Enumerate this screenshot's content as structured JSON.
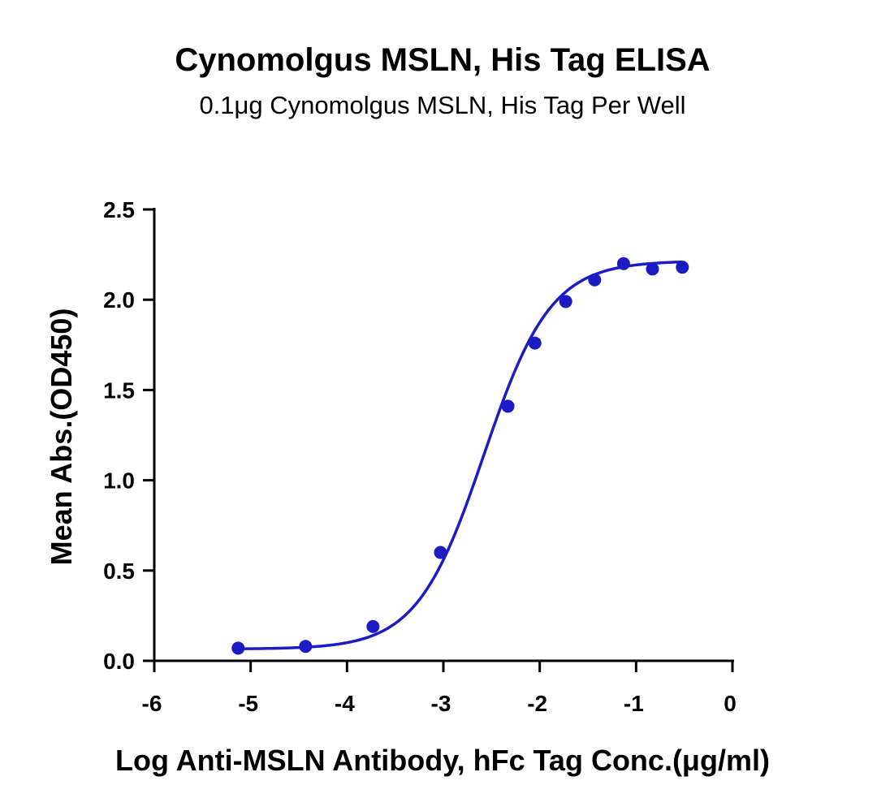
{
  "chart_data": {
    "type": "scatter",
    "title": "Cynomolgus MSLN, His Tag ELISA",
    "subtitle": "0.1μg Cynomolgus MSLN, His Tag Per Well",
    "xlabel": "Log Anti-MSLN Antibody, hFc Tag Conc.(μg/ml)",
    "ylabel": "Mean Abs.(OD450)",
    "xlim": [
      -6,
      0
    ],
    "ylim": [
      0,
      2.5
    ],
    "x_ticks": [
      "-6",
      "-5",
      "-4",
      "-3",
      "-2",
      "-1",
      "0"
    ],
    "y_ticks": [
      "0.0",
      "0.5",
      "1.0",
      "1.5",
      "2.0",
      "2.5"
    ],
    "grid": false,
    "legend": "none",
    "series": [
      {
        "color": "#1c1cc4",
        "x": [
          -5.13,
          -4.43,
          -3.73,
          -3.03,
          -2.33,
          -2.05,
          -1.73,
          -1.43,
          -1.13,
          -0.83,
          -0.52
        ],
        "y": [
          0.07,
          0.08,
          0.19,
          0.6,
          1.41,
          1.76,
          1.99,
          2.11,
          2.2,
          2.17,
          2.18
        ]
      }
    ],
    "fit_curve": {
      "model": "4PL",
      "color": "#1c1cc4",
      "bottom": 0.065,
      "top": 2.215,
      "logEC50": -2.58,
      "hill": 1.25
    }
  }
}
